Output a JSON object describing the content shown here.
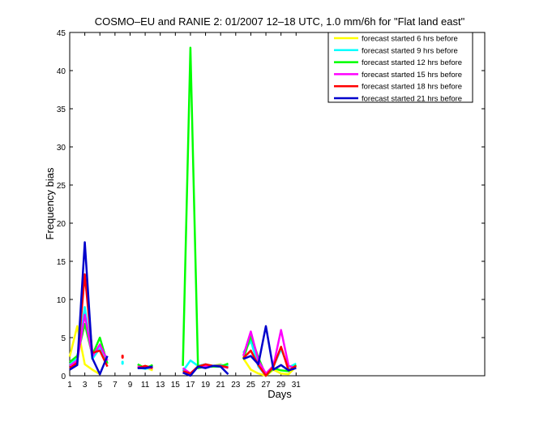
{
  "chart_data": {
    "type": "line",
    "title": "COSMO–EU and RANIE 2: 01/2007 12–18 UTC, 1.0 mm/6h for \"Flat land east\"",
    "xlabel": "Days",
    "ylabel": "Frequency bias",
    "xlim": [
      1,
      56
    ],
    "ylim": [
      0,
      45
    ],
    "xticks": [
      1,
      3,
      5,
      7,
      9,
      11,
      13,
      15,
      17,
      19,
      21,
      23,
      25,
      27,
      29,
      31
    ],
    "yticks": [
      0,
      5,
      10,
      15,
      20,
      25,
      30,
      35,
      40,
      45
    ],
    "grid": false,
    "legend_position": "top-right",
    "series": [
      {
        "name": "forecast started 6 hrs before",
        "color": "#ffff00",
        "values": [
          [
            1,
            2.5
          ],
          [
            2,
            6.5
          ],
          [
            3,
            1.5
          ],
          [
            4,
            0.8
          ],
          [
            5,
            0.2
          ],
          [
            6,
            null
          ],
          [
            7,
            null
          ],
          [
            8,
            null
          ],
          [
            9,
            null
          ],
          [
            10,
            1.3
          ],
          [
            11,
            1.1
          ],
          [
            12,
            0.7
          ],
          [
            13,
            null
          ],
          [
            14,
            null
          ],
          [
            15,
            null
          ],
          [
            16,
            0.8
          ],
          [
            17,
            0.2
          ],
          [
            18,
            1.3
          ],
          [
            19,
            1.1
          ],
          [
            20,
            1.3
          ],
          [
            21,
            1.5
          ],
          [
            22,
            1.0
          ],
          [
            23,
            null
          ],
          [
            24,
            2.3
          ],
          [
            25,
            0.8
          ],
          [
            26,
            0.3
          ],
          [
            27,
            0.0
          ],
          [
            28,
            0.8
          ],
          [
            29,
            0.3
          ],
          [
            30,
            0.2
          ],
          [
            31,
            1.2
          ]
        ]
      },
      {
        "name": "forecast started 9 hrs before",
        "color": "#00ffff",
        "values": [
          [
            1,
            1.5
          ],
          [
            2,
            2.2
          ],
          [
            3,
            9.0
          ],
          [
            4,
            2.2
          ],
          [
            5,
            3.6
          ],
          [
            6,
            1.6
          ],
          [
            7,
            null
          ],
          [
            8,
            1.7
          ],
          [
            9,
            null
          ],
          [
            10,
            1.1
          ],
          [
            11,
            0.9
          ],
          [
            12,
            1.1
          ],
          [
            13,
            null
          ],
          [
            14,
            null
          ],
          [
            15,
            null
          ],
          [
            16,
            0.6
          ],
          [
            17,
            2.0
          ],
          [
            18,
            1.3
          ],
          [
            19,
            1.5
          ],
          [
            20,
            1.3
          ],
          [
            21,
            1.4
          ],
          [
            22,
            1.3
          ],
          [
            23,
            null
          ],
          [
            24,
            3.0
          ],
          [
            25,
            4.6
          ],
          [
            26,
            1.2
          ],
          [
            27,
            0.0
          ],
          [
            28,
            1.2
          ],
          [
            29,
            3.5
          ],
          [
            30,
            1.1
          ],
          [
            31,
            1.6
          ]
        ]
      },
      {
        "name": "forecast started 12 hrs before",
        "color": "#00ff00",
        "values": [
          [
            1,
            1.8
          ],
          [
            2,
            2.6
          ],
          [
            3,
            6.8
          ],
          [
            4,
            2.7
          ],
          [
            5,
            5.0
          ],
          [
            6,
            1.6
          ],
          [
            7,
            null
          ],
          [
            8,
            null
          ],
          [
            9,
            null
          ],
          [
            10,
            1.5
          ],
          [
            11,
            1.0
          ],
          [
            12,
            1.4
          ],
          [
            13,
            null
          ],
          [
            14,
            null
          ],
          [
            15,
            null
          ],
          [
            16,
            1.3
          ],
          [
            17,
            43.0
          ],
          [
            18,
            1.0
          ],
          [
            19,
            1.2
          ],
          [
            20,
            1.2
          ],
          [
            21,
            1.2
          ],
          [
            22,
            1.6
          ],
          [
            23,
            null
          ],
          [
            24,
            2.2
          ],
          [
            25,
            5.2
          ],
          [
            26,
            2.4
          ],
          [
            27,
            0.0
          ],
          [
            28,
            1.0
          ],
          [
            29,
            0.7
          ],
          [
            30,
            0.6
          ],
          [
            31,
            1.4
          ]
        ]
      },
      {
        "name": "forecast started 15 hrs before",
        "color": "#ff00ff",
        "values": [
          [
            1,
            1.3
          ],
          [
            2,
            2.0
          ],
          [
            3,
            8.0
          ],
          [
            4,
            2.5
          ],
          [
            5,
            4.1
          ],
          [
            6,
            2.0
          ],
          [
            7,
            null
          ],
          [
            8,
            null
          ],
          [
            9,
            null
          ],
          [
            10,
            1.2
          ],
          [
            11,
            1.1
          ],
          [
            12,
            1.0
          ],
          [
            13,
            null
          ],
          [
            14,
            null
          ],
          [
            15,
            null
          ],
          [
            16,
            1.0
          ],
          [
            17,
            0.3
          ],
          [
            18,
            1.2
          ],
          [
            19,
            1.3
          ],
          [
            20,
            1.3
          ],
          [
            21,
            1.3
          ],
          [
            22,
            1.0
          ],
          [
            23,
            null
          ],
          [
            24,
            2.6
          ],
          [
            25,
            5.8
          ],
          [
            26,
            2.0
          ],
          [
            27,
            0.3
          ],
          [
            28,
            1.3
          ],
          [
            29,
            6.0
          ],
          [
            30,
            1.3
          ],
          [
            31,
            1.0
          ]
        ]
      },
      {
        "name": "forecast started 18 hrs before",
        "color": "#ff0000",
        "values": [
          [
            1,
            1.0
          ],
          [
            2,
            1.7
          ],
          [
            3,
            13.3
          ],
          [
            4,
            3.0
          ],
          [
            5,
            3.3
          ],
          [
            6,
            1.2
          ],
          [
            7,
            null
          ],
          [
            8,
            2.5
          ],
          [
            9,
            null
          ],
          [
            10,
            1.0
          ],
          [
            11,
            1.3
          ],
          [
            12,
            1.0
          ],
          [
            13,
            null
          ],
          [
            14,
            null
          ],
          [
            15,
            null
          ],
          [
            16,
            0.6
          ],
          [
            17,
            0.3
          ],
          [
            18,
            1.2
          ],
          [
            19,
            1.5
          ],
          [
            20,
            1.3
          ],
          [
            21,
            1.3
          ],
          [
            22,
            1.1
          ],
          [
            23,
            null
          ],
          [
            24,
            2.3
          ],
          [
            25,
            3.3
          ],
          [
            26,
            1.4
          ],
          [
            27,
            0.0
          ],
          [
            28,
            1.2
          ],
          [
            29,
            3.8
          ],
          [
            30,
            0.7
          ],
          [
            31,
            1.3
          ]
        ]
      },
      {
        "name": "forecast started 21 hrs before",
        "color": "#0000cc",
        "values": [
          [
            1,
            0.8
          ],
          [
            2,
            1.4
          ],
          [
            3,
            17.5
          ],
          [
            4,
            2.3
          ],
          [
            5,
            0.2
          ],
          [
            6,
            2.6
          ],
          [
            7,
            null
          ],
          [
            8,
            null
          ],
          [
            9,
            null
          ],
          [
            10,
            1.0
          ],
          [
            11,
            1.0
          ],
          [
            12,
            1.2
          ],
          [
            13,
            null
          ],
          [
            14,
            null
          ],
          [
            15,
            null
          ],
          [
            16,
            0.4
          ],
          [
            17,
            0.0
          ],
          [
            18,
            1.2
          ],
          [
            19,
            1.0
          ],
          [
            20,
            1.3
          ],
          [
            21,
            1.2
          ],
          [
            22,
            0.2
          ],
          [
            23,
            null
          ],
          [
            24,
            2.2
          ],
          [
            25,
            2.6
          ],
          [
            26,
            1.5
          ],
          [
            27,
            6.5
          ],
          [
            28,
            0.8
          ],
          [
            29,
            1.4
          ],
          [
            30,
            0.7
          ],
          [
            31,
            1.0
          ]
        ]
      }
    ]
  }
}
